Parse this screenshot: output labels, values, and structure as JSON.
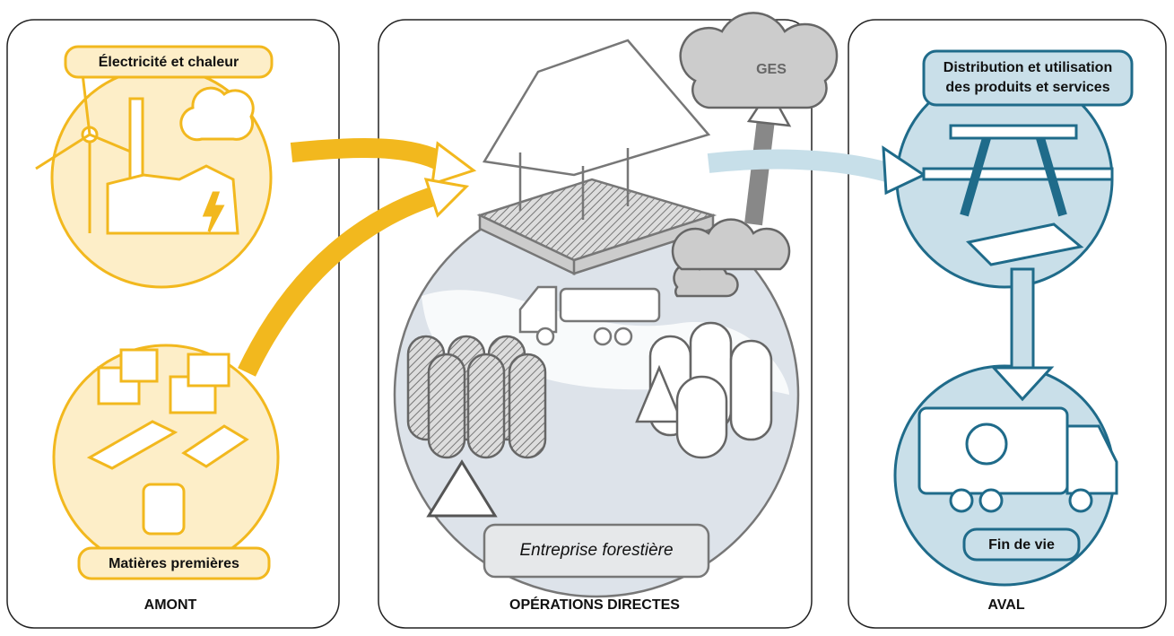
{
  "panels": [
    {
      "label": "AMONT",
      "nodes": [
        "Électricité et chaleur",
        "Matières premières"
      ]
    },
    {
      "label": "OPÉRATIONS DIRECTES",
      "company": "Entreprise forestière",
      "emission": "GES"
    },
    {
      "label": "AVAL",
      "nodes": [
        [
          "Distribution et utilisation",
          "des produits et services"
        ],
        "Fin de vie"
      ]
    }
  ]
}
